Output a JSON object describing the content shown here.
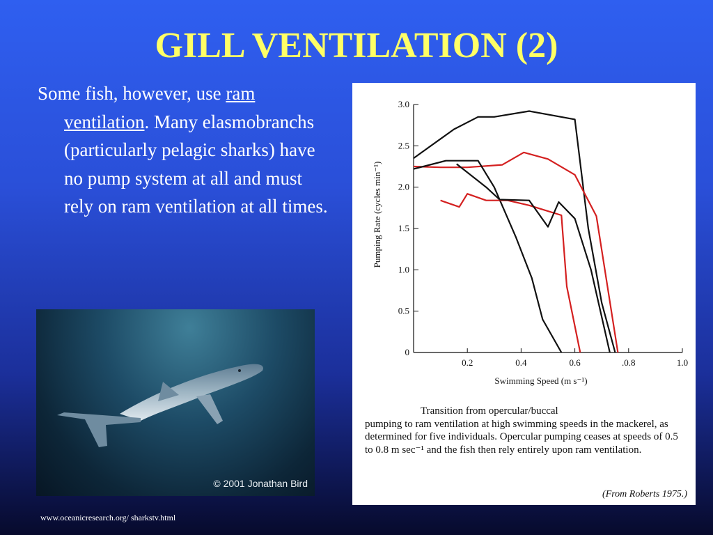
{
  "slide": {
    "title": "GILL VENTILATION (2)",
    "body": {
      "part1": "Some fish, however, use ",
      "ram": "ram",
      "space": " ",
      "ventilation": "ventilation",
      "part2": ".  Many elasmobranchs (particularly pelagic sharks) have no pump system at all and must rely on ram ventilation at all times."
    },
    "photo_copyright": "© 2001 Jonathan Bird",
    "footer_url": "www.oceanicresearch.org/ sharkstv.html"
  },
  "figure": {
    "caption_line1": "Transition from opercular/buccal",
    "caption_rest": "pumping to ram ventilation at high swimming speeds in the mackerel, as determined for five individuals. Opercular pumping ceases at speeds of 0.5 to 0.8 m sec⁻¹ and the fish then rely entirely upon ram ventilation.",
    "citation": "(From Roberts 1975.)"
  },
  "chart_data": {
    "type": "line",
    "xlabel": "Swimming Speed (m s⁻¹)",
    "ylabel": "Pumping Rate (cycles min⁻¹)",
    "xlim": [
      0,
      1.0
    ],
    "ylim": [
      0,
      3.0
    ],
    "xticks": [
      {
        "v": 0.2,
        "label": "0.2"
      },
      {
        "v": 0.4,
        "label": "0.4"
      },
      {
        "v": 0.6,
        "label": "0.6"
      },
      {
        "v": 0.8,
        "label": ".0.8"
      },
      {
        "v": 1.0,
        "label": "1.0"
      }
    ],
    "yticks": [
      {
        "v": 0,
        "label": "0"
      },
      {
        "v": 0.5,
        "label": "0.5"
      },
      {
        "v": 1.0,
        "label": "1.0"
      },
      {
        "v": 1.5,
        "label": "1.5"
      },
      {
        "v": 2.0,
        "label": "2.0"
      },
      {
        "v": 2.5,
        "label": "2.5"
      },
      {
        "v": 3.0,
        "label": "3.0"
      }
    ],
    "grid": false,
    "series": [
      {
        "color": "#111111",
        "points": [
          [
            0,
            2.35
          ],
          [
            0.15,
            2.7
          ],
          [
            0.24,
            2.85
          ],
          [
            0.3,
            2.85
          ],
          [
            0.43,
            2.92
          ],
          [
            0.6,
            2.82
          ],
          [
            0.65,
            1.5
          ],
          [
            0.7,
            0.6
          ],
          [
            0.75,
            0
          ]
        ]
      },
      {
        "color": "#d42020",
        "points": [
          [
            0,
            2.25
          ],
          [
            0.1,
            2.24
          ],
          [
            0.2,
            2.24
          ],
          [
            0.33,
            2.27
          ],
          [
            0.41,
            2.42
          ],
          [
            0.5,
            2.34
          ],
          [
            0.6,
            2.15
          ],
          [
            0.68,
            1.65
          ],
          [
            0.76,
            0
          ]
        ]
      },
      {
        "color": "#111111",
        "points": [
          [
            0,
            2.22
          ],
          [
            0.12,
            2.32
          ],
          [
            0.24,
            2.32
          ],
          [
            0.3,
            2.0
          ],
          [
            0.38,
            1.4
          ],
          [
            0.44,
            0.9
          ],
          [
            0.48,
            0.4
          ],
          [
            0.55,
            0
          ]
        ]
      },
      {
        "color": "#d42020",
        "points": [
          [
            0.1,
            1.84
          ],
          [
            0.17,
            1.76
          ],
          [
            0.2,
            1.92
          ],
          [
            0.27,
            1.84
          ],
          [
            0.35,
            1.84
          ],
          [
            0.43,
            1.78
          ],
          [
            0.55,
            1.66
          ],
          [
            0.57,
            0.8
          ],
          [
            0.62,
            0
          ]
        ]
      },
      {
        "color": "#111111",
        "points": [
          [
            0.16,
            2.28
          ],
          [
            0.27,
            2.0
          ],
          [
            0.32,
            1.85
          ],
          [
            0.43,
            1.84
          ],
          [
            0.5,
            1.52
          ],
          [
            0.54,
            1.82
          ],
          [
            0.6,
            1.62
          ],
          [
            0.66,
            1.0
          ],
          [
            0.73,
            0
          ]
        ]
      }
    ]
  }
}
